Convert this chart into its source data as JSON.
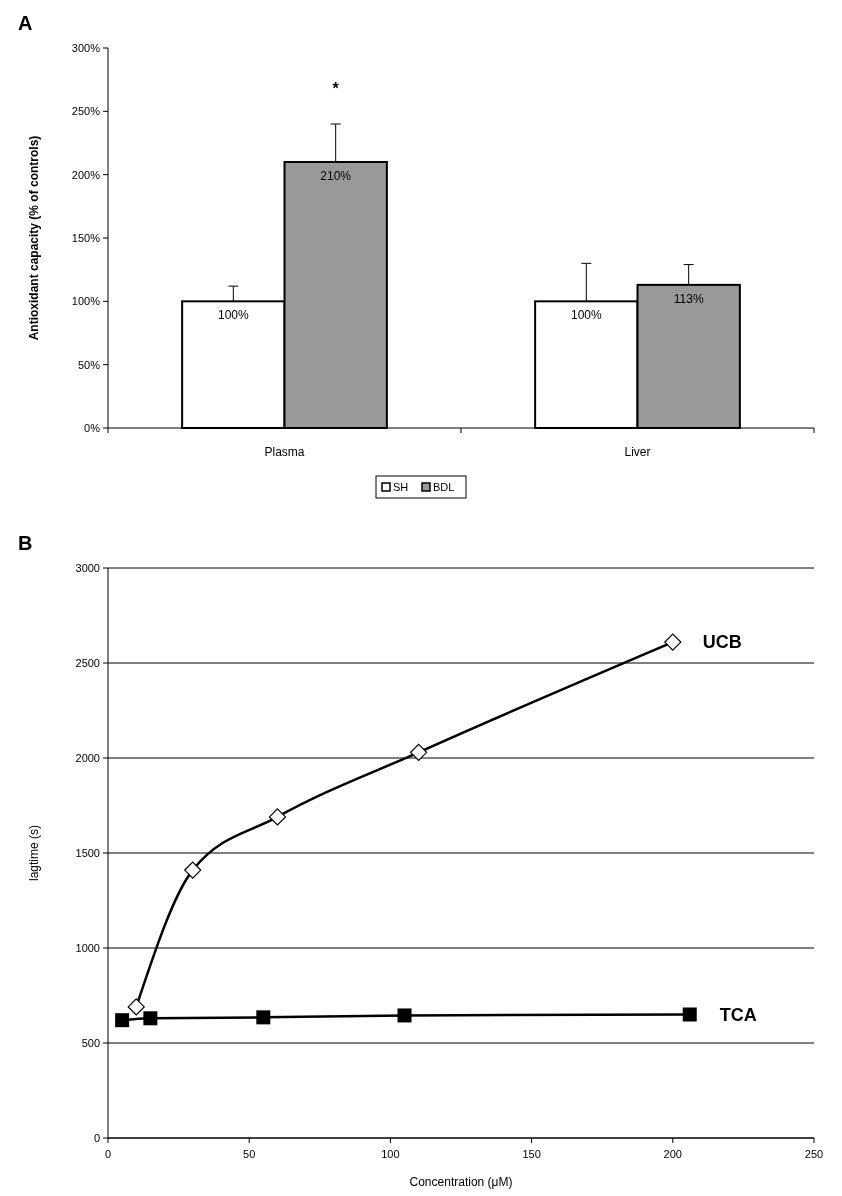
{
  "chart_data": [
    {
      "type": "bar",
      "title": "A",
      "ylabel": "Antioxidant capacity (% of controls)",
      "categories": [
        "Plasma",
        "Liver"
      ],
      "series": [
        {
          "name": "SH",
          "color": "#ffffff",
          "values": [
            100,
            100
          ],
          "errors": [
            [
              100,
              112
            ],
            [
              100,
              130
            ]
          ],
          "value_labels": [
            "100%",
            "100%"
          ]
        },
        {
          "name": "BDL",
          "color": "#999999",
          "values": [
            210,
            113
          ],
          "errors": [
            [
              210,
              240
            ],
            [
              113,
              129
            ]
          ],
          "value_labels": [
            "210%",
            "113%"
          ]
        }
      ],
      "ylim": [
        0,
        300
      ],
      "yticks": [
        {
          "value": 0,
          "label": "0%"
        },
        {
          "value": 50,
          "label": "50%"
        },
        {
          "value": 100,
          "label": "100%"
        },
        {
          "value": 150,
          "label": "150%"
        },
        {
          "value": 200,
          "label": "200%"
        },
        {
          "value": 250,
          "label": "250%"
        },
        {
          "value": 300,
          "label": "300%"
        }
      ],
      "annotations": [
        "*"
      ],
      "legend": "bottom",
      "grid": false
    },
    {
      "type": "line",
      "title": "B",
      "xlabel": "Concentration (μM)",
      "ylabel": "lagtime (s)",
      "series": [
        {
          "name": "UCB",
          "color": "#000000",
          "marker": "diamond",
          "x": [
            10,
            30,
            60,
            110,
            200
          ],
          "values": [
            690,
            1410,
            1690,
            2030,
            2610
          ]
        },
        {
          "name": "TCA",
          "color": "#000000",
          "marker": "square",
          "x": [
            5,
            15,
            55,
            105,
            206
          ],
          "values": [
            620,
            630,
            635,
            645,
            650
          ]
        }
      ],
      "xlim": [
        0,
        250
      ],
      "xticks": [
        0,
        50,
        100,
        150,
        200,
        250
      ],
      "ylim": [
        0,
        3000
      ],
      "yticks": [
        0,
        500,
        1000,
        1500,
        2000,
        2500,
        3000
      ],
      "grid": "y"
    }
  ]
}
